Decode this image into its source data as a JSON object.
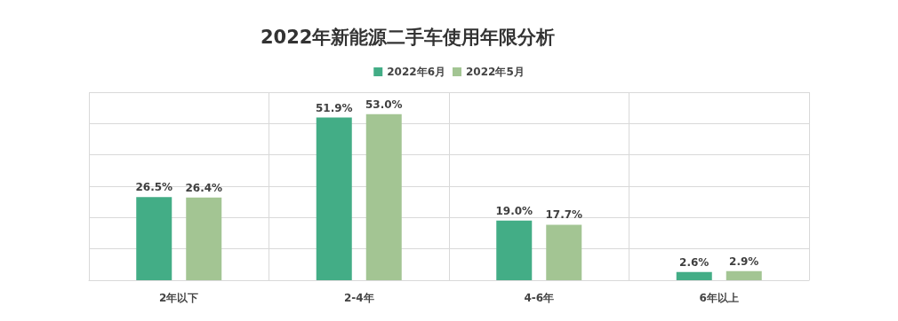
{
  "chart_data": {
    "type": "bar",
    "title": "2022年新能源二手车使用年限分析",
    "categories": [
      "2年以下",
      "2-4年",
      "4-6年",
      "6年以上"
    ],
    "series": [
      {
        "name": "2022年6月",
        "color": "#43ad86",
        "values": [
          26.5,
          51.9,
          19.0,
          2.6
        ],
        "value_labels": [
          "26.5%",
          "51.9%",
          "19.0%",
          "2.6%"
        ]
      },
      {
        "name": "2022年5月",
        "color": "#a3c593",
        "values": [
          26.4,
          53.0,
          17.7,
          2.9
        ],
        "value_labels": [
          "26.4%",
          "53.0%",
          "17.7%",
          "2.9%"
        ]
      }
    ],
    "ylim": [
      0,
      60
    ],
    "yticks": [
      {
        "value": 0,
        "label": null
      },
      {
        "value": 10,
        "label": null
      },
      {
        "value": 20,
        "label": null
      },
      {
        "value": 30,
        "label": null
      },
      {
        "value": 40,
        "label": null
      },
      {
        "value": 50,
        "label": null
      },
      {
        "value": 60,
        "label": null
      }
    ],
    "tick_labels": "x",
    "grid": true,
    "legend": "top"
  }
}
